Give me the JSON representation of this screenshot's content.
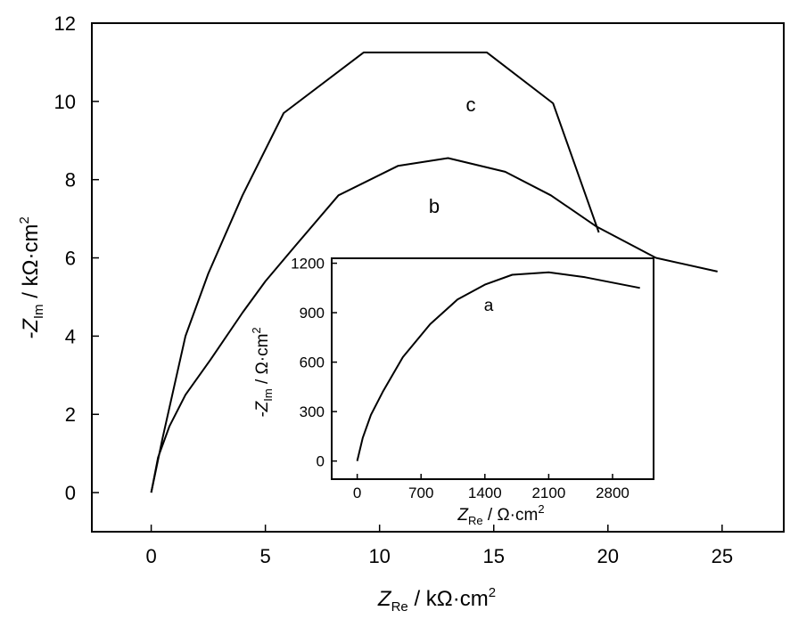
{
  "chart_data": [
    {
      "type": "line",
      "xlim": [
        -2.6,
        27.7
      ],
      "ylim": [
        -1,
        12
      ],
      "x_ticks": [
        0,
        5,
        10,
        15,
        20,
        25
      ],
      "y_ticks": [
        0,
        2,
        4,
        6,
        8,
        10,
        12
      ],
      "x_tick_labels": [
        "0",
        "5",
        "10",
        "15",
        "20",
        "25"
      ],
      "y_tick_labels": [
        "0",
        "2",
        "4",
        "6",
        "8",
        "10",
        "12"
      ],
      "xlabel": {
        "main": "Z",
        "sub": "Re",
        "unit": " / kΩ·cm",
        "sup": "2"
      },
      "ylabel": {
        "main": "-Z",
        "sub": "Im",
        "unit": " / kΩ·cm",
        "sup": "2"
      },
      "grid": false,
      "series": [
        {
          "name": "b",
          "points": [
            [
              0,
              0
            ],
            [
              0.3,
              0.9
            ],
            [
              0.8,
              1.7
            ],
            [
              1.5,
              2.5
            ],
            [
              2.6,
              3.4
            ],
            [
              4.0,
              4.6
            ],
            [
              5.0,
              5.4
            ],
            [
              6.3,
              6.3
            ],
            [
              8.2,
              7.6
            ],
            [
              10.8,
              8.35
            ],
            [
              13.0,
              8.55
            ],
            [
              15.5,
              8.2
            ],
            [
              17.5,
              7.6
            ],
            [
              19.5,
              6.8
            ],
            [
              22.1,
              6.0
            ],
            [
              24.8,
              5.65
            ]
          ]
        },
        {
          "name": "c",
          "points": [
            [
              0,
              0
            ],
            [
              0.5,
              1.4
            ],
            [
              1.5,
              4.0
            ],
            [
              2.5,
              5.6
            ],
            [
              4.0,
              7.6
            ],
            [
              5.8,
              9.7
            ],
            [
              9.3,
              11.25
            ],
            [
              12.0,
              11.25
            ],
            [
              14.7,
              11.25
            ],
            [
              17.6,
              9.95
            ],
            [
              19.6,
              6.65
            ]
          ]
        }
      ]
    },
    {
      "type": "line",
      "inset": true,
      "xlim": [
        -280,
        3250
      ],
      "ylim": [
        -110,
        1230
      ],
      "x_ticks": [
        0,
        700,
        1400,
        2100,
        2800
      ],
      "y_ticks": [
        0,
        300,
        600,
        900,
        1200
      ],
      "x_tick_labels": [
        "0",
        "700",
        "1400",
        "2100",
        "2800"
      ],
      "y_tick_labels": [
        "0",
        "300",
        "600",
        "900",
        "1200"
      ],
      "xlabel": {
        "main": "Z",
        "sub": "Re",
        "unit": " / Ω·cm",
        "sup": "2"
      },
      "ylabel": {
        "main": "-Z",
        "sub": "Im",
        "unit": " / Ω·cm",
        "sup": "2"
      },
      "grid": false,
      "series": [
        {
          "name": "a",
          "points": [
            [
              0,
              0
            ],
            [
              60,
              140
            ],
            [
              150,
              280
            ],
            [
              280,
              420
            ],
            [
              500,
              630
            ],
            [
              800,
              830
            ],
            [
              1100,
              980
            ],
            [
              1400,
              1070
            ],
            [
              1700,
              1130
            ],
            [
              2100,
              1145
            ],
            [
              2500,
              1115
            ],
            [
              3100,
              1050
            ]
          ]
        }
      ]
    }
  ]
}
